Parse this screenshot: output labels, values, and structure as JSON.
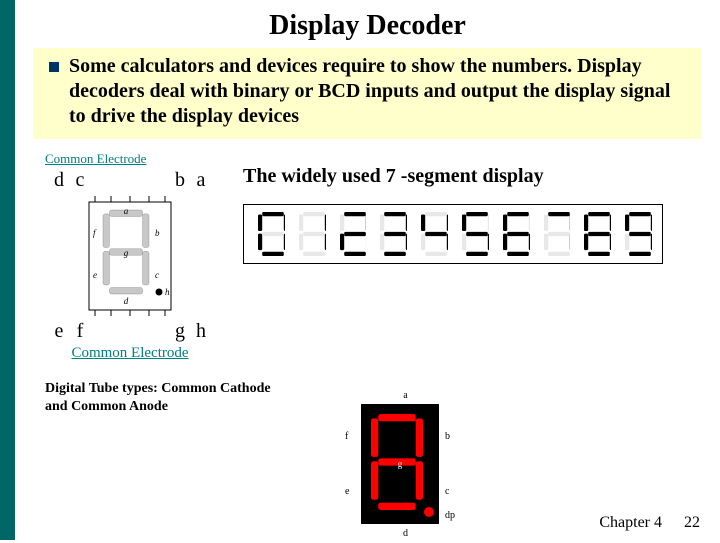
{
  "title": "Display Decoder",
  "body": "Some calculators and devices require to show the numbers. Display decoders deal with binary or BCD inputs and output the display signal to drive the display devices",
  "pinout": {
    "topLabel": "Common Electrode",
    "topPins": [
      "d",
      "c",
      "b",
      "a"
    ],
    "botPins": [
      "e",
      "f",
      "g",
      "h"
    ],
    "botLabel": "Common Electrode",
    "segmentLabels": [
      "a",
      "b",
      "c",
      "d",
      "e",
      "f",
      "g",
      "h"
    ],
    "offColor": "#c8c8c8",
    "onColor": "#000000",
    "labelColor": "#000000",
    "dotColor": "#000000",
    "borderColor": "#000000"
  },
  "widelyText": "The widely used 7 -segment display",
  "digits": {
    "count": 10,
    "patterns": {
      "0": [
        1,
        1,
        1,
        1,
        1,
        1,
        0
      ],
      "1": [
        0,
        1,
        1,
        0,
        0,
        0,
        0
      ],
      "2": [
        1,
        1,
        0,
        1,
        1,
        0,
        1
      ],
      "3": [
        1,
        1,
        1,
        1,
        0,
        0,
        1
      ],
      "4": [
        0,
        1,
        1,
        0,
        0,
        1,
        1
      ],
      "5": [
        1,
        0,
        1,
        1,
        0,
        1,
        1
      ],
      "6": [
        1,
        0,
        1,
        1,
        1,
        1,
        1
      ],
      "7": [
        1,
        1,
        1,
        0,
        0,
        0,
        0
      ],
      "8": [
        1,
        1,
        1,
        1,
        1,
        1,
        1
      ],
      "9": [
        1,
        1,
        1,
        1,
        0,
        1,
        1
      ]
    },
    "onColor": "#000000",
    "offColor": "#e8e8e8",
    "background": "#ffffff"
  },
  "tubeTypes": "Digital Tube types: Common Cathode and Common Anode",
  "redDisplay": {
    "segments": [
      1,
      1,
      1,
      1,
      1,
      1,
      1
    ],
    "labels": [
      "a",
      "b",
      "c",
      "d",
      "e",
      "f",
      "g",
      "dp"
    ],
    "onColor": "#ff0000",
    "bodyColor": "#000000",
    "labelColor": "#000000",
    "dpColor": "#ff0000",
    "width": 145,
    "height": 150
  },
  "footer": {
    "chapter": "Chapter 4",
    "page": "22"
  },
  "colors": {
    "sidebar": "#006666",
    "bodyBg": "#ffffcc",
    "bullet": "#003366",
    "teal": "#008080"
  }
}
